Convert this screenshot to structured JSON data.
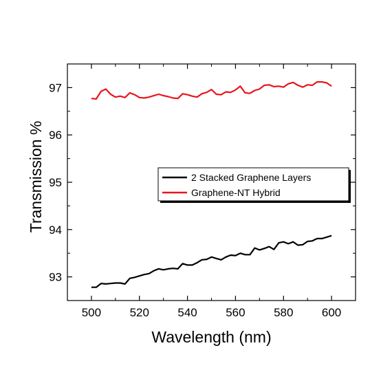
{
  "chart_data": {
    "type": "line",
    "title": "",
    "xlabel": "Wavelength (nm)",
    "ylabel": "Transmission %",
    "xlim": [
      490,
      610
    ],
    "ylim": [
      92.5,
      97.5
    ],
    "xticks": [
      500,
      520,
      540,
      560,
      580,
      600
    ],
    "yticks": [
      93,
      94,
      95,
      96,
      97
    ],
    "grid": false,
    "legend": "center-right",
    "series": [
      {
        "name": "2 Stacked Graphene Layers",
        "color": "#000000",
        "x": [
          500,
          502,
          504,
          506,
          508,
          510,
          512,
          514,
          516,
          518,
          520,
          522,
          524,
          526,
          528,
          530,
          532,
          534,
          536,
          538,
          540,
          542,
          544,
          546,
          548,
          550,
          552,
          554,
          556,
          558,
          560,
          562,
          564,
          566,
          568,
          570,
          572,
          574,
          576,
          578,
          580,
          582,
          584,
          586,
          588,
          590,
          592,
          594,
          596,
          598,
          600
        ],
        "y": [
          92.78,
          92.78,
          92.86,
          92.85,
          92.86,
          92.87,
          92.87,
          92.85,
          92.97,
          92.99,
          93.02,
          93.05,
          93.07,
          93.13,
          93.17,
          93.15,
          93.17,
          93.18,
          93.17,
          93.28,
          93.25,
          93.25,
          93.3,
          93.36,
          93.37,
          93.42,
          93.39,
          93.36,
          93.42,
          93.46,
          93.45,
          93.5,
          93.47,
          93.47,
          93.61,
          93.57,
          93.6,
          93.64,
          93.58,
          93.72,
          93.74,
          93.7,
          93.74,
          93.67,
          93.68,
          93.75,
          93.76,
          93.81,
          93.81,
          93.84,
          93.87
        ]
      },
      {
        "name": "Graphene-NT Hybrid",
        "color": "#e8141c",
        "x": [
          500,
          502,
          504,
          506,
          508,
          510,
          512,
          514,
          516,
          518,
          520,
          522,
          524,
          526,
          528,
          530,
          532,
          534,
          536,
          538,
          540,
          542,
          544,
          546,
          548,
          550,
          552,
          554,
          556,
          558,
          560,
          562,
          564,
          566,
          568,
          570,
          572,
          574,
          576,
          578,
          580,
          582,
          584,
          586,
          588,
          590,
          592,
          594,
          596,
          598,
          600
        ],
        "y": [
          96.77,
          96.76,
          96.92,
          96.97,
          96.86,
          96.8,
          96.82,
          96.79,
          96.89,
          96.85,
          96.79,
          96.78,
          96.8,
          96.83,
          96.86,
          96.83,
          96.81,
          96.78,
          96.77,
          96.87,
          96.85,
          96.82,
          96.8,
          96.87,
          96.9,
          96.96,
          96.86,
          96.85,
          96.91,
          96.9,
          96.95,
          97.03,
          96.89,
          96.88,
          96.94,
          96.97,
          97.05,
          97.06,
          97.02,
          97.03,
          97.01,
          97.08,
          97.11,
          97.05,
          97.01,
          97.06,
          97.05,
          97.12,
          97.12,
          97.1,
          97.03
        ]
      }
    ]
  }
}
